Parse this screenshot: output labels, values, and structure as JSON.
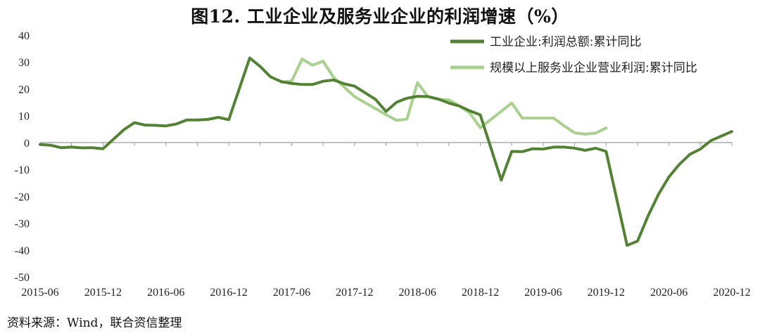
{
  "title": "图12.  工业企业及服务业企业的利润增速（%）",
  "source": "资料来源：Wind，联合资信整理",
  "chart_data": {
    "type": "line",
    "ylim": [
      -50,
      40
    ],
    "yticks": [
      "40",
      "30",
      "20",
      "10",
      "0",
      "-10",
      "-20",
      "-30",
      "-40",
      "-50"
    ],
    "xtick_labels": [
      "2015-06",
      "2015-12",
      "2016-06",
      "2016-12",
      "2017-06",
      "2017-12",
      "2018-06",
      "2018-12",
      "2019-06",
      "2019-12",
      "2020-06",
      "2020-12"
    ],
    "legend_position": "top-right",
    "series": [
      {
        "name": "工业企业:利润总额:累计同比",
        "color": "#548235",
        "x": [
          "2015-06",
          "2015-07",
          "2015-08",
          "2015-09",
          "2015-10",
          "2015-11",
          "2015-12",
          "2016-02",
          "2016-03",
          "2016-04",
          "2016-05",
          "2016-06",
          "2016-07",
          "2016-08",
          "2016-09",
          "2016-10",
          "2016-11",
          "2016-12",
          "2017-02",
          "2017-03",
          "2017-04",
          "2017-05",
          "2017-06",
          "2017-07",
          "2017-08",
          "2017-09",
          "2017-10",
          "2017-11",
          "2017-12",
          "2018-02",
          "2018-03",
          "2018-04",
          "2018-05",
          "2018-06",
          "2018-07",
          "2018-08",
          "2018-09",
          "2018-10",
          "2018-11",
          "2018-12",
          "2019-02",
          "2019-03",
          "2019-04",
          "2019-05",
          "2019-06",
          "2019-07",
          "2019-08",
          "2019-09",
          "2019-10",
          "2019-11",
          "2019-12",
          "2020-02",
          "2020-03",
          "2020-04",
          "2020-05",
          "2020-06",
          "2020-07",
          "2020-08",
          "2020-09",
          "2020-10",
          "2020-11",
          "2020-12"
        ],
        "values": [
          -0.7,
          -1.0,
          -1.9,
          -1.7,
          -2.0,
          -1.9,
          -2.3,
          4.8,
          7.4,
          6.5,
          6.4,
          6.2,
          6.9,
          8.4,
          8.4,
          8.6,
          9.4,
          8.5,
          31.5,
          28.3,
          24.4,
          22.7,
          22.0,
          21.6,
          21.6,
          22.8,
          23.3,
          21.9,
          21.0,
          16.1,
          11.6,
          15.0,
          16.5,
          17.2,
          17.1,
          16.2,
          14.7,
          13.6,
          11.8,
          10.3,
          -14.0,
          -3.3,
          -3.4,
          -2.3,
          -2.4,
          -1.7,
          -1.7,
          -2.1,
          -2.9,
          -2.1,
          -3.3,
          -38.3,
          -36.7,
          -27.4,
          -19.3,
          -12.8,
          -8.1,
          -4.4,
          -2.4,
          0.7,
          2.4,
          4.1
        ]
      },
      {
        "name": "规模以上服务业企业营业利润:累计同比",
        "color": "#a9d18e",
        "x": [
          "2017-05",
          "2017-06",
          "2017-07",
          "2017-08",
          "2017-09",
          "2017-10",
          "2017-11",
          "2017-12",
          "2018-03",
          "2018-04",
          "2018-05",
          "2018-06",
          "2018-07",
          "2018-08",
          "2018-09",
          "2018-10",
          "2018-11",
          "2018-12",
          "2019-03",
          "2019-04",
          "2019-05",
          "2019-06",
          "2019-07",
          "2019-08",
          "2019-09",
          "2019-10",
          "2019-11",
          "2019-12"
        ],
        "values": [
          22.5,
          22.9,
          31.1,
          28.8,
          30.3,
          24.3,
          20.7,
          17.1,
          10.4,
          8.3,
          8.7,
          22.3,
          17.1,
          16.1,
          15.9,
          13.6,
          11.0,
          5.5,
          14.7,
          9.1,
          9.1,
          9.1,
          9.1,
          6.2,
          3.6,
          3.1,
          3.5,
          5.4
        ]
      }
    ]
  }
}
